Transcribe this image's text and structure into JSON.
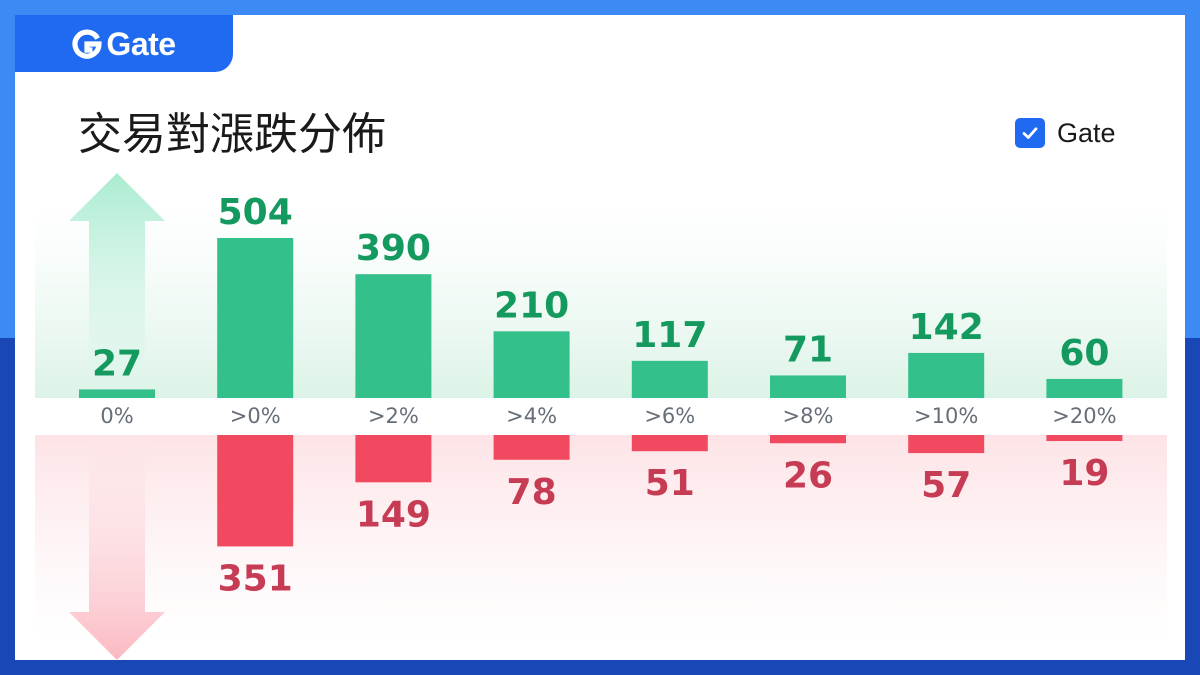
{
  "brand": {
    "logo_text": "Gate"
  },
  "title": "交易對漲跌分佈",
  "legend": {
    "label": "Gate",
    "checked": true
  },
  "colors": {
    "up": "#33c08a",
    "up_label": "#14995f",
    "down": "#f14a60",
    "down_label": "#c73c55",
    "accent": "#1f6af0"
  },
  "chart_data": {
    "type": "bar",
    "title": "交易對漲跌分佈",
    "categories": [
      "0%",
      ">0%",
      ">2%",
      ">4%",
      ">6%",
      ">8%",
      ">10%",
      ">20%"
    ],
    "series": [
      {
        "values": [
          27,
          504,
          390,
          210,
          117,
          71,
          142,
          60
        ]
      },
      {
        "values": [
          0,
          351,
          149,
          78,
          51,
          26,
          57,
          19
        ]
      }
    ],
    "legend": {
      "labels": [
        "Gate"
      ],
      "position": "top-right"
    },
    "grid": false
  }
}
